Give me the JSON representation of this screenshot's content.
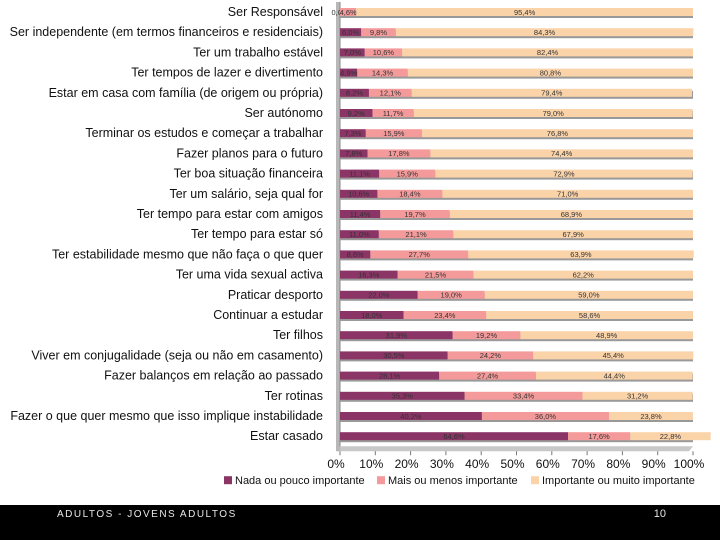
{
  "footer": {
    "left_text": "ADULTOS - JOVENS ADULTOS",
    "page_number": "10"
  },
  "colors": {
    "low": "#8b3466",
    "mid": "#f49a9a",
    "high": "#fbd3a9"
  },
  "chart_data": {
    "type": "bar",
    "orientation": "horizontal",
    "stacked": "percent",
    "title": "",
    "categories": [
      "Ser Responsável",
      "Ser independente (em termos financeiros e residenciais)",
      "Ter um trabalho estável",
      "Ter tempos de lazer e divertimento",
      "Estar em casa com família (de origem ou própria)",
      "Ser autónomo",
      "Terminar os estudos e começar a trabalhar",
      "Fazer planos para o futuro",
      "Ter boa situação financeira",
      "Ter um salário, seja qual for",
      "Ter tempo para estar com amigos",
      "Ter tempo para estar só",
      "Ter estabilidade mesmo que não faça o que quer",
      "Ter uma vida sexual activa",
      "Praticar desporto",
      "Continuar a estudar",
      "Ter filhos",
      "Viver em conjugalidade (seja ou não em casamento)",
      "Fazer balanços em relação ao passado",
      "Ter rotinas",
      "Fazer o que quer mesmo que isso implique instabilidade",
      "Estar casado"
    ],
    "series": [
      {
        "name": "Nada ou pouco importante",
        "values": [
          0.0,
          6.0,
          7.0,
          4.9,
          8.2,
          9.2,
          7.3,
          7.8,
          11.1,
          10.6,
          11.4,
          11.0,
          8.6,
          16.3,
          22.0,
          18.0,
          31.9,
          30.5,
          28.1,
          35.3,
          40.2,
          64.6
        ],
        "labels": [
          "0,0%",
          "6,0%",
          "7,0%",
          "4,9%",
          "8,2%",
          "9,2%",
          "7,3%",
          "7,8%",
          "11,1%",
          "10,6%",
          "11,4%",
          "11,0%",
          "8,6%",
          "16,3%",
          "22,0%",
          "18,0%",
          "31,9%",
          "30,5%",
          "28,1%",
          "35,3%",
          "40,2%",
          "64,6%"
        ]
      },
      {
        "name": "Mais ou menos importante",
        "values": [
          4.6,
          9.8,
          10.6,
          14.3,
          12.1,
          11.7,
          15.9,
          17.8,
          15.9,
          18.4,
          19.7,
          21.1,
          27.7,
          21.5,
          19.0,
          23.4,
          19.2,
          24.2,
          27.4,
          33.4,
          36.0,
          17.6
        ],
        "labels": [
          "4,6%",
          "9,8%",
          "10,6%",
          "14,3%",
          "12,1%",
          "11,7%",
          "15,9%",
          "17,8%",
          "15,9%",
          "18,4%",
          "19,7%",
          "21,1%",
          "27,7%",
          "21,5%",
          "19,0%",
          "23,4%",
          "19,2%",
          "24,2%",
          "27,4%",
          "33,4%",
          "36,0%",
          "17,6%"
        ]
      },
      {
        "name": "Importante ou muito importante",
        "values": [
          95.4,
          84.3,
          82.4,
          80.8,
          79.4,
          79.0,
          76.8,
          74.4,
          72.9,
          71.0,
          68.9,
          67.9,
          63.9,
          62.2,
          59.0,
          58.6,
          48.9,
          45.4,
          44.4,
          31.2,
          23.8,
          22.8
        ],
        "labels": [
          "95,4%",
          "84,3%",
          "82,4%",
          "80,8%",
          "79,4%",
          "79,0%",
          "76,8%",
          "74,4%",
          "72,9%",
          "71,0%",
          "68,9%",
          "67,9%",
          "63,9%",
          "62,2%",
          "59,0%",
          "58,6%",
          "48,9%",
          "45,4%",
          "44,4%",
          "31,2%",
          "23,8%",
          "22,8%"
        ]
      }
    ],
    "xlim": [
      0,
      100
    ],
    "xticks": [
      "0%",
      "10%",
      "20%",
      "30%",
      "40%",
      "50%",
      "60%",
      "70%",
      "80%",
      "90%",
      "100%"
    ],
    "legend": [
      "Nada ou pouco importante",
      "Mais ou menos importante",
      "Importante ou muito importante"
    ],
    "legend_position": "bottom",
    "grid": false
  }
}
